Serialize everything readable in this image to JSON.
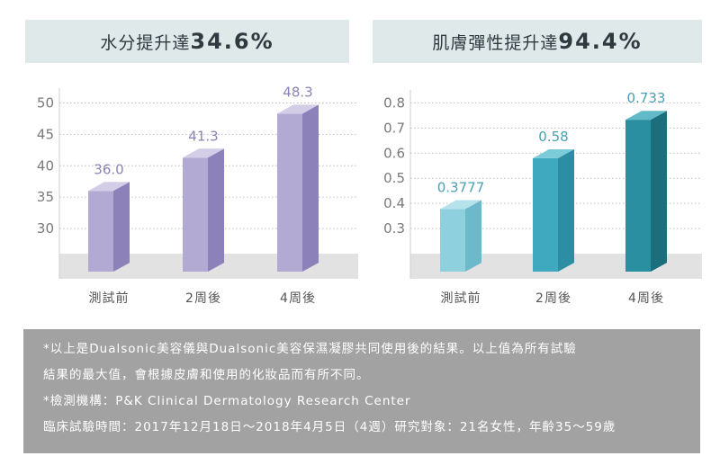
{
  "headers": {
    "left": {
      "label": "水分提升達",
      "value": "34.6%"
    },
    "right": {
      "label": "肌膚彈性提升達",
      "value": "94.4%"
    }
  },
  "chart_data": [
    {
      "type": "bar",
      "categories": [
        "測試前",
        "2周後",
        "4周後"
      ],
      "values": [
        36.0,
        41.3,
        48.3
      ],
      "value_labels": [
        "36.0",
        "41.3",
        "48.3"
      ],
      "yticks": [
        "30",
        "35",
        "40",
        "45",
        "50"
      ],
      "ylim": [
        26,
        51.5
      ],
      "grid": "dotted",
      "colors": {
        "front": "#b3aad4",
        "side": "#8d81ba",
        "top": "#d3cde8",
        "label": "#8c84b6",
        "floor": "#e2e2e2"
      }
    },
    {
      "type": "bar",
      "categories": [
        "測試前",
        "2周後",
        "4周後"
      ],
      "values": [
        0.3777,
        0.58,
        0.733
      ],
      "value_labels": [
        "0.3777",
        "0.58",
        "0.733"
      ],
      "yticks": [
        "0.3",
        "0.4",
        "0.5",
        "0.6",
        "0.7",
        "0.8"
      ],
      "ylim": [
        0.2,
        0.83
      ],
      "grid": "dotted",
      "colors": {
        "front_list": [
          "#8fd0df",
          "#3fa9bf",
          "#2a8fa1"
        ],
        "side_list": [
          "#6bb9ca",
          "#2b8ea3",
          "#1b6f7d"
        ],
        "top_list": [
          "#b6e2ec",
          "#7ccbd9",
          "#62b9c7"
        ],
        "label": "#4aa0b3",
        "floor": "#e2e2e2"
      }
    }
  ],
  "notes": {
    "line1": "*以上是Dualsonic美容儀與Dualsonic美容保濕凝膠共同使用後的結果。以上值為所有試驗",
    "line2": "結果的最大值，會根據皮膚和使用的化妝品而有所不同。",
    "line3": "*檢測機構：P&K Clinical Dermatology Research Center",
    "line4": "臨床試驗時間：2017年12月18日～2018年4月5日（4週）研究對象：21名女性，年齡35～59歲"
  }
}
